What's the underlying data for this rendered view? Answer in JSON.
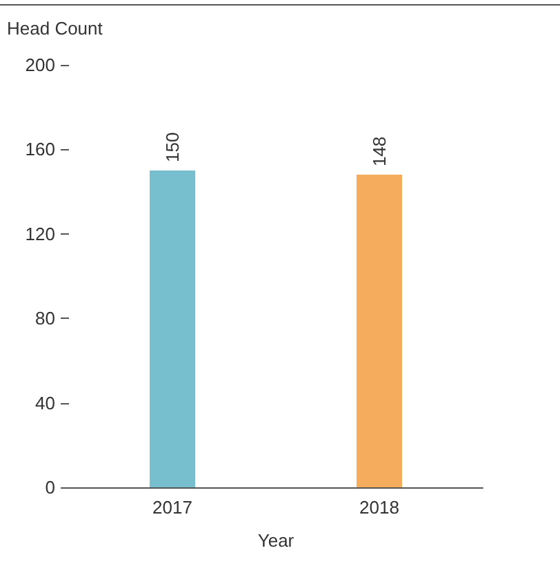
{
  "chart_data": {
    "type": "bar",
    "ylabel": "Head Count",
    "xlabel": "Year",
    "categories": [
      "2017",
      "2018"
    ],
    "values": [
      150,
      148
    ],
    "colors": [
      "#77bfcf",
      "#f5ad5d"
    ],
    "ylim": [
      0,
      200
    ],
    "yticks": [
      0,
      40,
      80,
      120,
      160,
      200
    ],
    "data_labels": true
  }
}
